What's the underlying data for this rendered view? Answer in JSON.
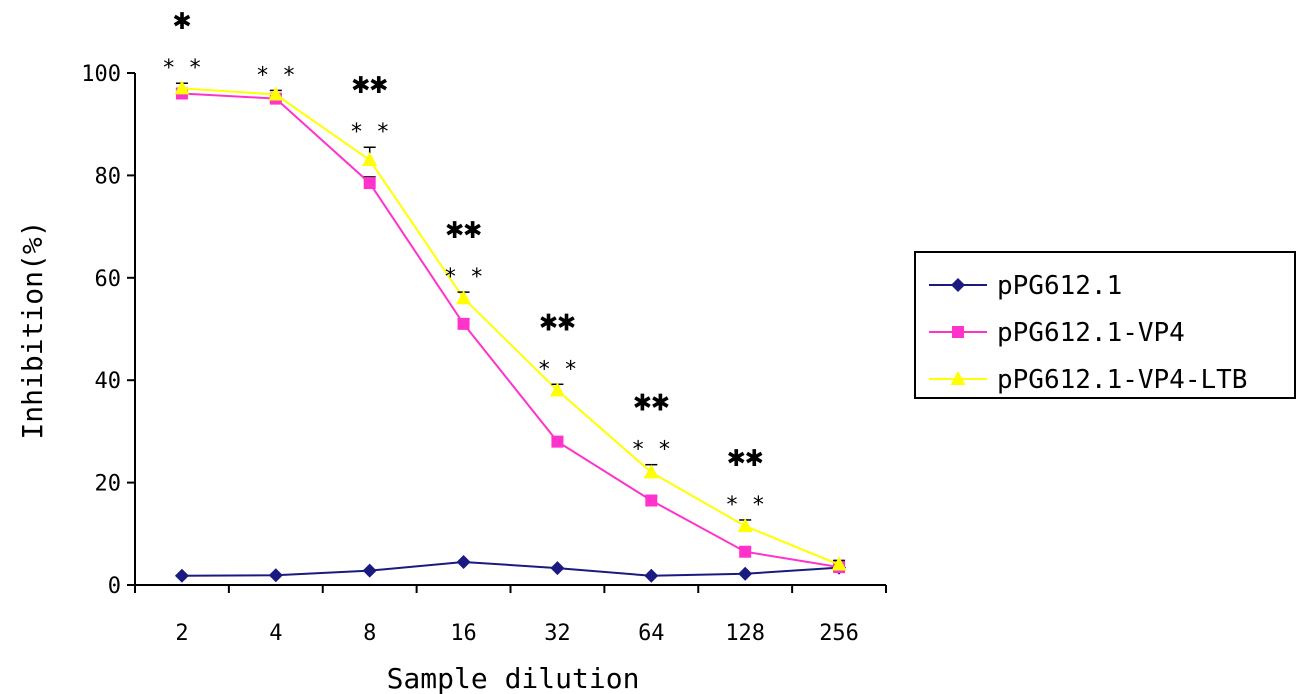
{
  "chart_data": {
    "type": "line",
    "xlabel": "Sample dilution",
    "ylabel": "Inhibition(%)",
    "categories": [
      "2",
      "4",
      "8",
      "16",
      "32",
      "64",
      "128",
      "256"
    ],
    "ylim": [
      0,
      100
    ],
    "yticks": [
      0,
      20,
      40,
      60,
      80,
      100
    ],
    "grid": false,
    "legend_position": "right",
    "series": [
      {
        "name": "pPG612.1",
        "color": "#1a1a80",
        "marker": "diamond",
        "values": [
          1.8,
          1.9,
          2.8,
          4.5,
          3.3,
          1.8,
          2.2,
          3.4
        ],
        "errors": [
          0,
          0,
          0,
          0,
          0,
          0,
          0,
          0
        ]
      },
      {
        "name": "pPG612.1-VP4",
        "color": "#ff33cc",
        "marker": "square",
        "values": [
          96,
          95,
          78.5,
          51,
          28,
          16.5,
          6.5,
          3.5
        ],
        "errors": [
          0.8,
          0.8,
          1.2,
          1.0,
          0.8,
          0.8,
          0.8,
          0.5
        ]
      },
      {
        "name": "pPG612.1-VP4-LTB",
        "color": "#ffff00",
        "marker": "triangle",
        "values": [
          97,
          95.8,
          83,
          56,
          38,
          22,
          11.5,
          4
        ],
        "errors": [
          1.0,
          0.8,
          2.5,
          1.2,
          1.2,
          1.5,
          1.2,
          0.8
        ]
      }
    ],
    "annotations": [
      {
        "category": "2",
        "top": "✱",
        "bottom": "* *"
      },
      {
        "category": "4",
        "top": "",
        "bottom": "* *"
      },
      {
        "category": "8",
        "top": "✱✱",
        "bottom": "* *"
      },
      {
        "category": "16",
        "top": "✱✱",
        "bottom": "* *"
      },
      {
        "category": "32",
        "top": "✱✱",
        "bottom": "* *"
      },
      {
        "category": "64",
        "top": "✱✱",
        "bottom": "* *"
      },
      {
        "category": "128",
        "top": "✱✱",
        "bottom": "* *"
      }
    ]
  }
}
